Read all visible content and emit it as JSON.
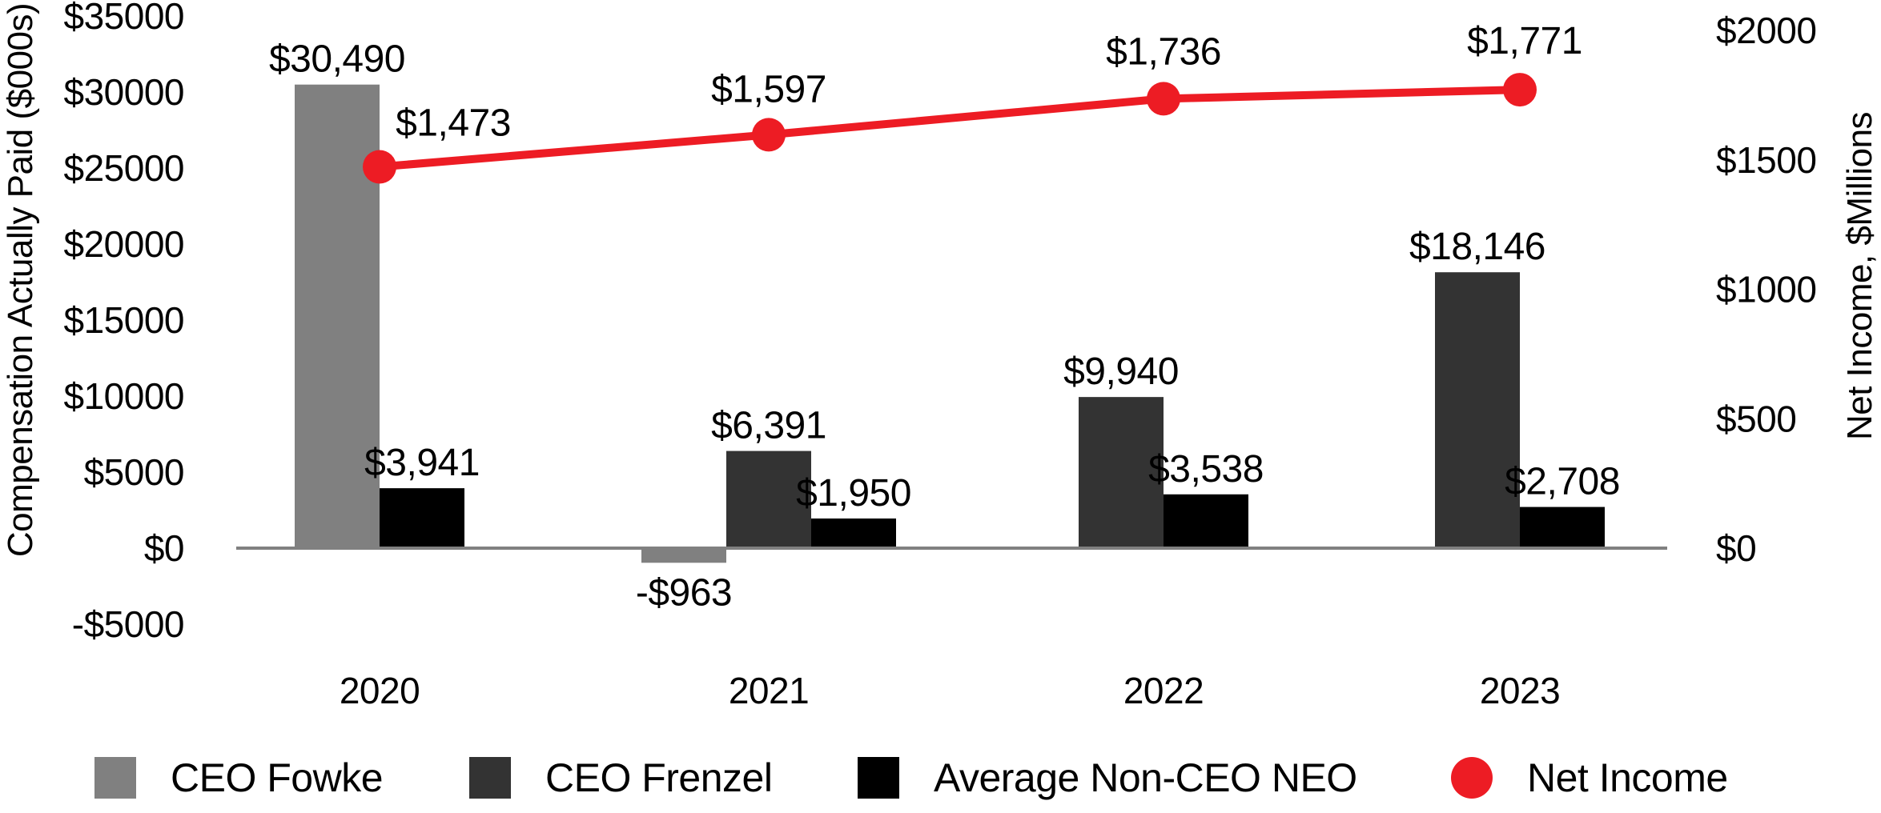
{
  "chart_data": {
    "type": "bar",
    "subtype": "combo-bar-line",
    "title": "",
    "categories": [
      "2020",
      "2021",
      "2022",
      "2023"
    ],
    "bar_series": [
      {
        "name": "CEO Fowke",
        "color": "#808080",
        "values": [
          30490,
          -963,
          null,
          null
        ],
        "labels": [
          "$30,490",
          "-$963",
          null,
          null
        ]
      },
      {
        "name": "CEO Frenzel",
        "color": "#333333",
        "values": [
          null,
          6391,
          9940,
          18146
        ],
        "labels": [
          null,
          "$6,391",
          "$9,940",
          "$18,146"
        ]
      },
      {
        "name": "Average Non-CEO NEO",
        "color": "#000000",
        "values": [
          3941,
          1950,
          3538,
          2708
        ],
        "labels": [
          "$3,941",
          "$1,950",
          "$3,538",
          "$2,708"
        ]
      }
    ],
    "line_series": {
      "name": "Net Income",
      "color": "#ed1c24",
      "values": [
        1473,
        1597,
        1736,
        1771
      ],
      "labels": [
        "$1,473",
        "$1,597",
        "$1,736",
        "$1,771"
      ]
    },
    "left_axis": {
      "title": "Compensation Actually Paid ($000s)",
      "tick_labels": [
        "$35000",
        "$30000",
        "$25000",
        "$20000",
        "$15000",
        "$10000",
        "$5000",
        "$0",
        "-$5000"
      ],
      "tick_values": [
        35000,
        30000,
        25000,
        20000,
        15000,
        10000,
        5000,
        0,
        -5000
      ],
      "range": [
        -5000,
        35000
      ]
    },
    "right_axis": {
      "title": "Net Income, $Millions",
      "tick_labels": [
        "$2000",
        "$1500",
        "$1000",
        "$500",
        "$0"
      ],
      "tick_values": [
        2000,
        1500,
        1000,
        500,
        0
      ],
      "range": [
        0,
        2000
      ]
    },
    "legend": [
      {
        "label": "CEO Fowke",
        "marker": "square",
        "color": "#808080"
      },
      {
        "label": "CEO Frenzel",
        "marker": "square",
        "color": "#333333"
      },
      {
        "label": "Average Non-CEO NEO",
        "marker": "square",
        "color": "#000000"
      },
      {
        "label": "Net Income",
        "marker": "circle",
        "color": "#ed1c24"
      }
    ],
    "legend_position": "bottom",
    "gridlines": false,
    "axis_line_color": "#808080"
  }
}
